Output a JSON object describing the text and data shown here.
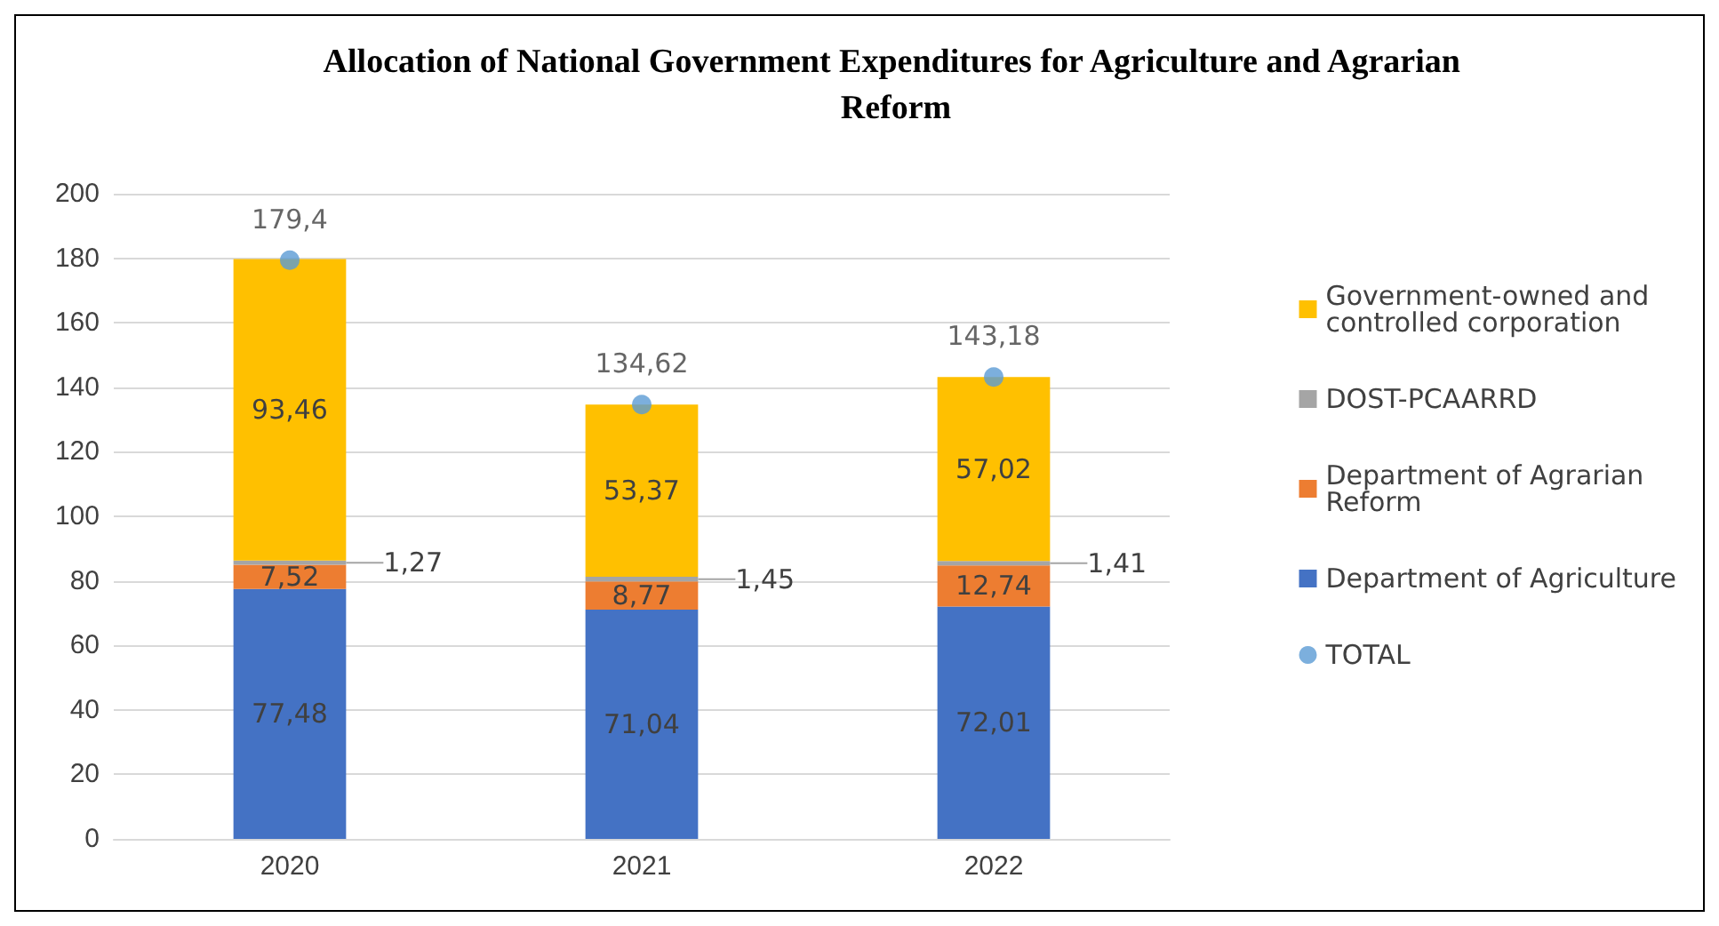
{
  "chart_data": {
    "type": "bar",
    "title": "Allocation of National Government Expenditures for Agriculture and Agrarian Reform",
    "categories": [
      "2020",
      "2021",
      "2022"
    ],
    "stacked": true,
    "ylim": [
      0,
      200
    ],
    "yticks": [
      0,
      20,
      40,
      60,
      80,
      100,
      120,
      140,
      160,
      180,
      200
    ],
    "grid": "y",
    "legend": "right",
    "series": [
      {
        "name": "Department of Agriculture",
        "color": "#4472c4",
        "values": [
          77.48,
          71.04,
          72.01
        ],
        "value_labels": [
          "77,48",
          "71,04",
          "72,01"
        ]
      },
      {
        "name": "Department of Agrarian Reform",
        "color": "#ed7d31",
        "values": [
          7.52,
          8.77,
          12.74
        ],
        "value_labels": [
          "7,52",
          "8,77",
          "12,74"
        ]
      },
      {
        "name": "DOST-PCAARRD",
        "color": "#a5a5a5",
        "values": [
          1.27,
          1.45,
          1.41
        ],
        "value_labels": [
          "1,27",
          "1,45",
          "1,41"
        ]
      },
      {
        "name": "Government-owned and controlled corporation",
        "color": "#ffc000",
        "values": [
          93.46,
          53.37,
          57.02
        ],
        "value_labels": [
          "93,46",
          "53,37",
          "57,02"
        ]
      },
      {
        "name": "TOTAL",
        "type": "scatter",
        "color": "#5b9bd5",
        "marker": "circle",
        "values": [
          179.4,
          134.62,
          143.18
        ],
        "value_labels": [
          "179,4",
          "134,62",
          "143,18"
        ]
      }
    ]
  }
}
